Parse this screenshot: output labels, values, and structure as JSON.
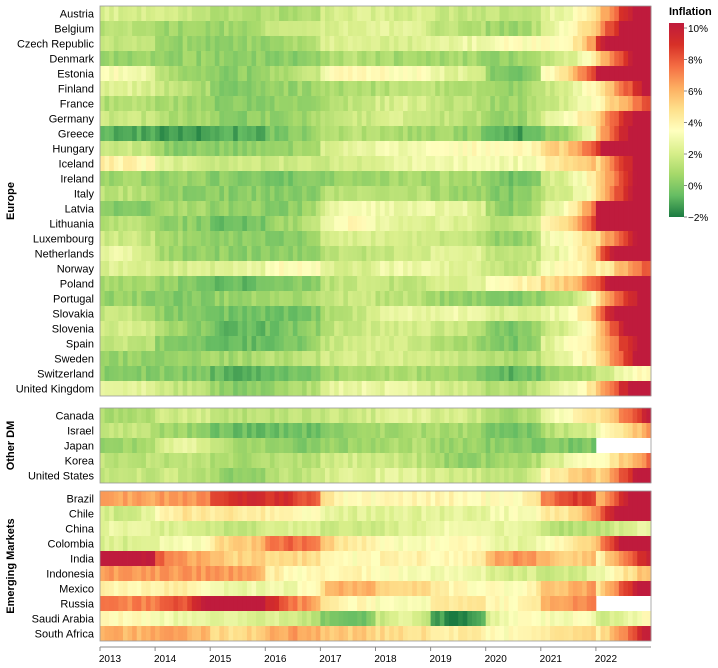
{
  "chart_data": {
    "type": "heatmap",
    "title": "",
    "xlabel": "",
    "ylabel": "",
    "x_ticks": [
      "2013",
      "2014",
      "2015",
      "2016",
      "2017",
      "2018",
      "2019",
      "2020",
      "2021",
      "2022"
    ],
    "x_range": [
      "2013-01",
      "2022-12"
    ],
    "legend": {
      "title": "Inflation",
      "ticks": [
        "10%",
        "8%",
        "6%",
        "4%",
        "2%",
        "0%",
        "−2%"
      ],
      "range": [
        -2,
        10
      ],
      "colors": [
        "#1a7a41",
        "#66bd63",
        "#a6d96a",
        "#d9ef8b",
        "#ffffbf",
        "#fee08b",
        "#fdae61",
        "#f46d43",
        "#d73027",
        "#bf1b3d"
      ]
    },
    "panels": [
      {
        "name": "Europe",
        "countries": [
          {
            "name": "Austria",
            "yearly": [
              2.1,
              1.6,
              0.9,
              0.9,
              2.1,
              2.0,
              1.5,
              1.4,
              2.8,
              8.6
            ]
          },
          {
            "name": "Belgium",
            "yearly": [
              1.2,
              0.5,
              0.6,
              1.8,
              2.2,
              2.3,
              1.2,
              0.4,
              3.2,
              10.3
            ]
          },
          {
            "name": "Czech Republic",
            "yearly": [
              1.4,
              0.4,
              0.3,
              0.6,
              2.4,
              2.0,
              2.6,
              3.3,
              3.3,
              14.8
            ]
          },
          {
            "name": "Denmark",
            "yearly": [
              0.5,
              0.4,
              0.2,
              0.0,
              1.1,
              0.7,
              0.7,
              0.3,
              1.9,
              8.5
            ]
          },
          {
            "name": "Estonia",
            "yearly": [
              3.2,
              0.5,
              0.1,
              0.8,
              3.7,
              3.4,
              2.3,
              -0.6,
              4.5,
              19.4
            ]
          },
          {
            "name": "Finland",
            "yearly": [
              2.2,
              1.2,
              -0.2,
              0.4,
              0.8,
              1.2,
              1.1,
              0.4,
              2.1,
              7.2
            ]
          },
          {
            "name": "France",
            "yearly": [
              1.0,
              0.6,
              0.1,
              0.3,
              1.2,
              2.1,
              1.3,
              0.5,
              2.1,
              5.9
            ]
          },
          {
            "name": "Germany",
            "yearly": [
              1.6,
              0.8,
              0.1,
              0.4,
              1.7,
              1.9,
              1.4,
              0.4,
              3.2,
              8.7
            ]
          },
          {
            "name": "Greece",
            "yearly": [
              -0.9,
              -1.4,
              -1.1,
              0.0,
              1.1,
              0.8,
              0.5,
              -1.3,
              0.6,
              9.3
            ]
          },
          {
            "name": "Hungary",
            "yearly": [
              1.7,
              0.0,
              0.1,
              0.4,
              2.4,
              2.9,
              3.4,
              3.4,
              5.2,
              15.3
            ]
          },
          {
            "name": "Iceland",
            "yearly": [
              3.9,
              2.0,
              1.6,
              1.7,
              1.8,
              2.7,
              3.0,
              2.8,
              4.4,
              8.3
            ]
          },
          {
            "name": "Ireland",
            "yearly": [
              0.5,
              0.3,
              0.0,
              -0.2,
              0.3,
              0.7,
              0.9,
              -0.5,
              2.4,
              8.1
            ]
          },
          {
            "name": "Italy",
            "yearly": [
              1.2,
              0.2,
              0.1,
              -0.1,
              1.3,
              1.2,
              0.6,
              -0.1,
              1.9,
              8.7
            ]
          },
          {
            "name": "Latvia",
            "yearly": [
              0.0,
              0.7,
              0.2,
              0.1,
              2.9,
              2.6,
              2.7,
              0.1,
              3.2,
              17.2
            ]
          },
          {
            "name": "Lithuania",
            "yearly": [
              1.2,
              0.2,
              -0.7,
              0.7,
              3.7,
              2.5,
              2.2,
              1.1,
              4.6,
              18.9
            ]
          },
          {
            "name": "Luxembourg",
            "yearly": [
              1.7,
              0.7,
              0.1,
              0.0,
              2.1,
              2.0,
              1.6,
              0.0,
              3.5,
              8.2
            ]
          },
          {
            "name": "Netherlands",
            "yearly": [
              2.6,
              0.3,
              0.2,
              0.1,
              1.3,
              1.6,
              2.7,
              1.1,
              2.8,
              11.6
            ]
          },
          {
            "name": "Norway",
            "yearly": [
              2.1,
              2.0,
              2.2,
              3.6,
              1.9,
              2.9,
              2.2,
              1.2,
              3.5,
              5.8
            ]
          },
          {
            "name": "Poland",
            "yearly": [
              0.8,
              0.1,
              -0.7,
              -0.2,
              1.6,
              1.2,
              2.1,
              3.7,
              5.2,
              13.2
            ]
          },
          {
            "name": "Portugal",
            "yearly": [
              0.4,
              -0.2,
              0.5,
              0.6,
              1.6,
              1.2,
              0.3,
              -0.1,
              0.9,
              8.1
            ]
          },
          {
            "name": "Slovakia",
            "yearly": [
              1.5,
              -0.1,
              -0.3,
              -0.5,
              1.4,
              2.5,
              2.8,
              2.0,
              2.8,
              12.1
            ]
          },
          {
            "name": "Slovenia",
            "yearly": [
              1.9,
              0.4,
              -0.8,
              -0.2,
              1.6,
              1.9,
              1.7,
              -0.3,
              2.0,
              9.3
            ]
          },
          {
            "name": "Spain",
            "yearly": [
              1.5,
              -0.2,
              -0.6,
              -0.3,
              2.0,
              1.7,
              0.8,
              -0.3,
              3.0,
              8.3
            ]
          },
          {
            "name": "Sweden",
            "yearly": [
              0.4,
              0.2,
              0.7,
              1.1,
              1.9,
              2.0,
              1.7,
              0.7,
              2.7,
              8.1
            ]
          },
          {
            "name": "Switzerland",
            "yearly": [
              0.1,
              0.0,
              -0.8,
              -0.5,
              0.6,
              0.9,
              0.4,
              -0.8,
              0.5,
              2.7
            ]
          },
          {
            "name": "United Kingdom",
            "yearly": [
              2.6,
              1.5,
              0.0,
              0.7,
              2.7,
              2.5,
              1.8,
              0.9,
              2.6,
              9.1
            ]
          }
        ]
      },
      {
        "name": "Other DM",
        "countries": [
          {
            "name": "Canada",
            "yearly": [
              0.9,
              1.9,
              1.1,
              1.4,
              1.6,
              2.3,
              1.9,
              0.7,
              3.4,
              6.8
            ]
          },
          {
            "name": "Israel",
            "yearly": [
              1.5,
              0.5,
              -0.6,
              -0.5,
              0.2,
              0.8,
              0.8,
              -0.6,
              1.5,
              4.4
            ]
          },
          {
            "name": "Japan",
            "yearly": [
              0.4,
              2.7,
              0.8,
              -0.1,
              0.5,
              1.0,
              0.5,
              0.0,
              -0.2,
              null
            ]
          },
          {
            "name": "Korea",
            "yearly": [
              1.3,
              1.3,
              0.7,
              1.0,
              1.9,
              1.5,
              0.4,
              0.5,
              2.5,
              5.1
            ]
          },
          {
            "name": "United States",
            "yearly": [
              1.5,
              1.6,
              0.1,
              1.3,
              2.1,
              2.4,
              1.8,
              1.2,
              4.7,
              8.0
            ]
          }
        ]
      },
      {
        "name": "Emerging Markets",
        "countries": [
          {
            "name": "Brazil",
            "yearly": [
              6.2,
              6.3,
              9.0,
              8.7,
              3.4,
              3.7,
              3.7,
              3.2,
              8.3,
              9.3
            ]
          },
          {
            "name": "Chile",
            "yearly": [
              1.8,
              4.4,
              4.3,
              3.8,
              2.2,
              2.4,
              2.3,
              3.0,
              4.5,
              11.6
            ]
          },
          {
            "name": "China",
            "yearly": [
              2.6,
              2.0,
              1.4,
              2.0,
              1.6,
              2.1,
              2.9,
              2.5,
              0.9,
              2.0
            ]
          },
          {
            "name": "Colombia",
            "yearly": [
              2.0,
              2.9,
              5.0,
              7.5,
              4.3,
              3.2,
              3.5,
              2.5,
              3.5,
              10.2
            ]
          },
          {
            "name": "India",
            "yearly": [
              10.9,
              6.4,
              4.9,
              4.9,
              3.3,
              3.9,
              3.7,
              6.6,
              5.1,
              6.7
            ]
          },
          {
            "name": "Indonesia",
            "yearly": [
              6.4,
              6.4,
              6.4,
              3.5,
              3.8,
              3.2,
              2.8,
              2.0,
              1.6,
              4.2
            ]
          },
          {
            "name": "Mexico",
            "yearly": [
              3.8,
              4.0,
              2.7,
              2.8,
              6.0,
              4.9,
              3.6,
              3.4,
              5.7,
              7.9
            ]
          },
          {
            "name": "Russia",
            "yearly": [
              6.8,
              7.8,
              15.5,
              7.0,
              3.7,
              2.9,
              4.5,
              3.4,
              6.7,
              null
            ]
          },
          {
            "name": "Saudi Arabia",
            "yearly": [
              3.5,
              2.7,
              2.2,
              2.0,
              -0.9,
              2.5,
              -2.1,
              3.4,
              3.1,
              2.5
            ]
          },
          {
            "name": "South Africa",
            "yearly": [
              5.8,
              6.1,
              4.6,
              6.3,
              5.3,
              4.6,
              4.1,
              3.3,
              4.5,
              6.9
            ]
          }
        ]
      }
    ]
  }
}
